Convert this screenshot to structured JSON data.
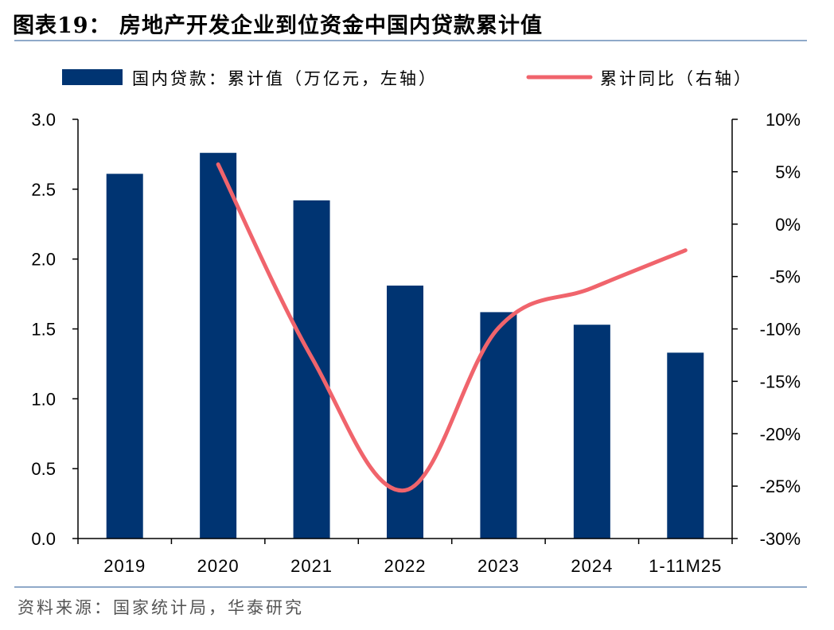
{
  "figure_title": "图表19：  房地产开发企业到位资金中国内贷款累计值",
  "source": "资料来源：国家统计局，华泰研究",
  "colors": {
    "bar": "#003472",
    "line": "#f0646c",
    "rule": "#8fa9c9"
  },
  "chart_data": {
    "type": "bar",
    "categories": [
      "2019",
      "2020",
      "2021",
      "2022",
      "2023",
      "2024",
      "1-11M25"
    ],
    "series": [
      {
        "name": "国内贷款：累计值（万亿元，左轴）",
        "type": "bar",
        "axis": "left",
        "values": [
          2.61,
          2.76,
          2.42,
          1.81,
          1.62,
          1.53,
          1.33
        ]
      },
      {
        "name": "累计同比（右轴）",
        "type": "line",
        "axis": "right",
        "values": [
          null,
          5.7,
          -12.7,
          -25.4,
          -9.9,
          -6.1,
          -2.5
        ]
      }
    ],
    "y_left": {
      "lim": [
        0,
        3.0
      ],
      "ticks": [
        "0.0",
        "0.5",
        "1.0",
        "1.5",
        "2.0",
        "2.5",
        "3.0"
      ]
    },
    "y_right": {
      "lim": [
        -30,
        10
      ],
      "ticks": [
        "-30%",
        "-25%",
        "-20%",
        "-15%",
        "-10%",
        "-5%",
        "0%",
        "5%",
        "10%"
      ]
    },
    "legend_position": "top",
    "grid": false
  }
}
